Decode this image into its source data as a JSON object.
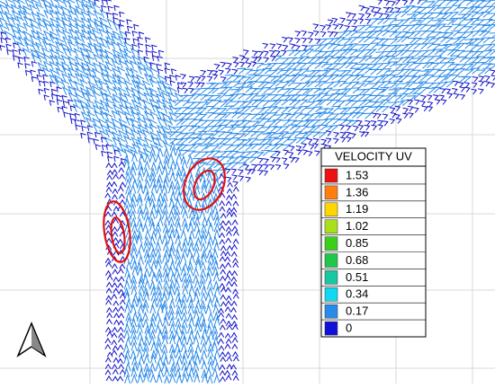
{
  "legend": {
    "title": "VELOCITY UV",
    "entries": [
      {
        "label": 1.53,
        "color": "#ee1111"
      },
      {
        "label": 1.36,
        "color": "#ff7f0e"
      },
      {
        "label": 1.19,
        "color": "#ffd700"
      },
      {
        "label": 1.02,
        "color": "#a8e01c"
      },
      {
        "label": 0.85,
        "color": "#3ccf1a"
      },
      {
        "label": 0.68,
        "color": "#1fc84a"
      },
      {
        "label": 0.51,
        "color": "#18c8a0"
      },
      {
        "label": 0.34,
        "color": "#10d8f0"
      },
      {
        "label": 0.17,
        "color": "#2a8ae8"
      },
      {
        "label": 0,
        "color": "#1010d8"
      }
    ]
  }
}
